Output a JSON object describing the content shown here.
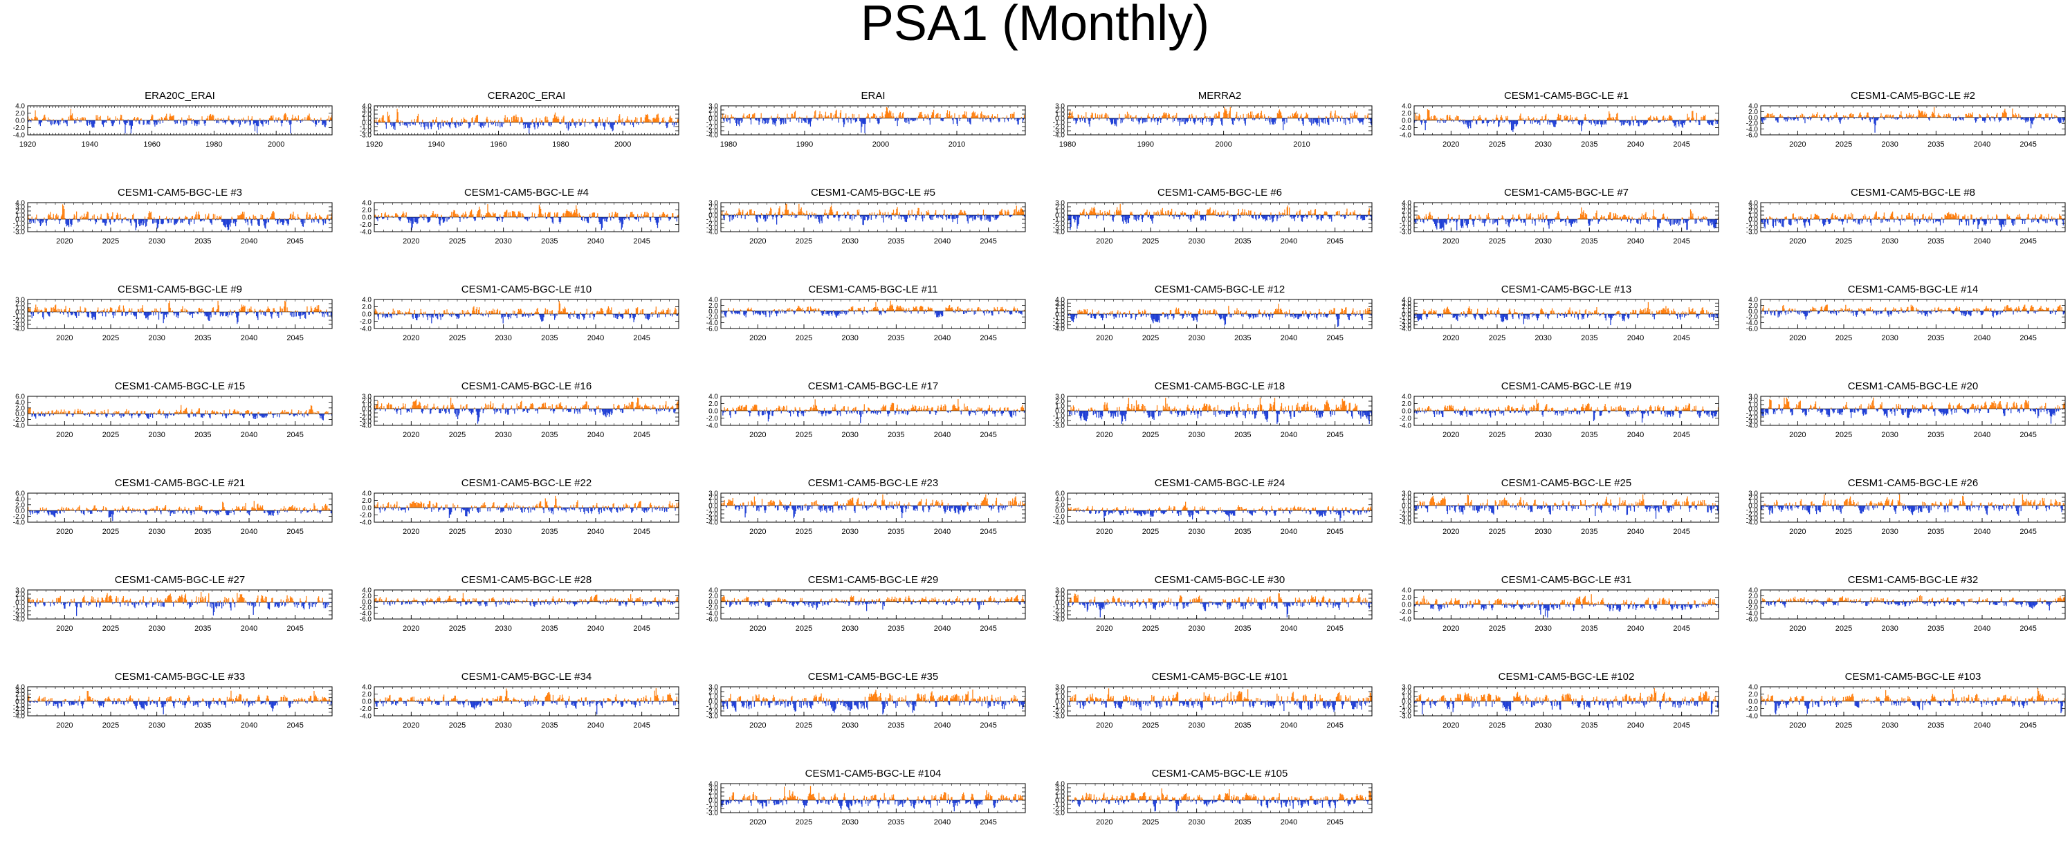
{
  "figure": {
    "title": "PSA1 (Monthly)",
    "colors": {
      "positive": "#ff7f0e",
      "negative": "#1f3fd6",
      "frame": "#000000"
    }
  },
  "chart_data": [
    {
      "type": "bar",
      "title": "ERA20C_ERAI",
      "xlim": [
        1920,
        2018
      ],
      "xticks": [
        "1920",
        "1940",
        "1960",
        "1980",
        "2000"
      ],
      "yticks": [
        "4.0",
        "2.0",
        "0.0",
        "-2.0",
        "-4.0"
      ],
      "ylim": [
        -4,
        4
      ],
      "seed": 11
    },
    {
      "type": "bar",
      "title": "CERA20C_ERAI",
      "xlim": [
        1920,
        2018
      ],
      "xticks": [
        "1920",
        "1940",
        "1960",
        "1980",
        "2000"
      ],
      "yticks": [
        "4.0",
        "3.0",
        "2.0",
        "1.0",
        "0.0",
        "-1.0",
        "-2.0",
        "-3.0"
      ],
      "ylim": [
        -3,
        4
      ],
      "seed": 12
    },
    {
      "type": "bar",
      "title": "ERAI",
      "xlim": [
        1979,
        2019
      ],
      "xticks": [
        "1980",
        "1990",
        "2000",
        "2010"
      ],
      "yticks": [
        "3.0",
        "2.0",
        "1.0",
        "0.0",
        "-1.0",
        "-2.0",
        "-3.0",
        "-4.0"
      ],
      "ylim": [
        -4,
        3
      ],
      "seed": 13
    },
    {
      "type": "bar",
      "title": "MERRA2",
      "xlim": [
        1980,
        2019
      ],
      "xticks": [
        "1980",
        "1990",
        "2000",
        "2010"
      ],
      "yticks": [
        "3.0",
        "2.0",
        "1.0",
        "0.0",
        "-1.0",
        "-2.0",
        "-3.0",
        "-4.0"
      ],
      "ylim": [
        -4,
        3
      ],
      "seed": 14
    },
    {
      "type": "bar",
      "title": "CESM1-CAM5-BGC-LE #1",
      "xlim": [
        2016,
        2049
      ],
      "xticks": [
        "2020",
        "2025",
        "2030",
        "2035",
        "2040",
        "2045"
      ],
      "yticks": [
        "4.0",
        "2.0",
        "0.0",
        "-2.0",
        "-4.0"
      ],
      "ylim": [
        -4,
        4
      ],
      "seed": 15
    },
    {
      "type": "bar",
      "title": "CESM1-CAM5-BGC-LE #2",
      "xlim": [
        2016,
        2049
      ],
      "xticks": [
        "2020",
        "2025",
        "2030",
        "2035",
        "2040",
        "2045"
      ],
      "yticks": [
        "4.0",
        "2.0",
        "0.0",
        "-2.0",
        "-4.0",
        "-6.0"
      ],
      "ylim": [
        -6,
        4
      ],
      "seed": 16
    },
    {
      "type": "bar",
      "title": "CESM1-CAM5-BGC-LE #3",
      "xlim": [
        2016,
        2049
      ],
      "xticks": [
        "2020",
        "2025",
        "2030",
        "2035",
        "2040",
        "2045"
      ],
      "yticks": [
        "4.0",
        "3.0",
        "2.0",
        "1.0",
        "0.0",
        "-1.0",
        "-2.0",
        "-3.0"
      ],
      "ylim": [
        -3,
        4
      ],
      "seed": 17
    },
    {
      "type": "bar",
      "title": "CESM1-CAM5-BGC-LE #4",
      "xlim": [
        2016,
        2049
      ],
      "xticks": [
        "2020",
        "2025",
        "2030",
        "2035",
        "2040",
        "2045"
      ],
      "yticks": [
        "4.0",
        "2.0",
        "0.0",
        "-2.0",
        "-4.0"
      ],
      "ylim": [
        -4,
        4
      ],
      "seed": 18
    },
    {
      "type": "bar",
      "title": "CESM1-CAM5-BGC-LE #5",
      "xlim": [
        2016,
        2049
      ],
      "xticks": [
        "2020",
        "2025",
        "2030",
        "2035",
        "2040",
        "2045"
      ],
      "yticks": [
        "3.0",
        "2.0",
        "1.0",
        "0.0",
        "-1.0",
        "-2.0",
        "-3.0",
        "-4.0"
      ],
      "ylim": [
        -4,
        3
      ],
      "seed": 19
    },
    {
      "type": "bar",
      "title": "CESM1-CAM5-BGC-LE #6",
      "xlim": [
        2016,
        2049
      ],
      "xticks": [
        "2020",
        "2025",
        "2030",
        "2035",
        "2040",
        "2045"
      ],
      "yticks": [
        "3.0",
        "2.0",
        "1.0",
        "0.0",
        "-1.0",
        "-2.0",
        "-3.0",
        "-4.0"
      ],
      "ylim": [
        -4,
        3
      ],
      "seed": 20
    },
    {
      "type": "bar",
      "title": "CESM1-CAM5-BGC-LE #7",
      "xlim": [
        2016,
        2049
      ],
      "xticks": [
        "2020",
        "2025",
        "2030",
        "2035",
        "2040",
        "2045"
      ],
      "yticks": [
        "4.0",
        "3.0",
        "2.0",
        "1.0",
        "0.0",
        "-1.0",
        "-2.0",
        "-3.0"
      ],
      "ylim": [
        -3,
        4
      ],
      "seed": 21
    },
    {
      "type": "bar",
      "title": "CESM1-CAM5-BGC-LE #8",
      "xlim": [
        2016,
        2049
      ],
      "xticks": [
        "2020",
        "2025",
        "2030",
        "2035",
        "2040",
        "2045"
      ],
      "yticks": [
        "4.0",
        "3.0",
        "2.0",
        "1.0",
        "0.0",
        "-1.0",
        "-2.0",
        "-3.0"
      ],
      "ylim": [
        -3,
        4
      ],
      "seed": 22
    },
    {
      "type": "bar",
      "title": "CESM1-CAM5-BGC-LE #9",
      "xlim": [
        2016,
        2049
      ],
      "xticks": [
        "2020",
        "2025",
        "2030",
        "2035",
        "2040",
        "2045"
      ],
      "yticks": [
        "3.0",
        "2.0",
        "1.0",
        "0.0",
        "-1.0",
        "-2.0",
        "-3.0",
        "-4.0"
      ],
      "ylim": [
        -4,
        3
      ],
      "seed": 23
    },
    {
      "type": "bar",
      "title": "CESM1-CAM5-BGC-LE #10",
      "xlim": [
        2016,
        2049
      ],
      "xticks": [
        "2020",
        "2025",
        "2030",
        "2035",
        "2040",
        "2045"
      ],
      "yticks": [
        "4.0",
        "2.0",
        "0.0",
        "-2.0",
        "-4.0"
      ],
      "ylim": [
        -4,
        4
      ],
      "seed": 24
    },
    {
      "type": "bar",
      "title": "CESM1-CAM5-BGC-LE #11",
      "xlim": [
        2016,
        2049
      ],
      "xticks": [
        "2020",
        "2025",
        "2030",
        "2035",
        "2040",
        "2045"
      ],
      "yticks": [
        "4.0",
        "2.0",
        "0.0",
        "-2.0",
        "-4.0",
        "-6.0"
      ],
      "ylim": [
        -6,
        4
      ],
      "seed": 25
    },
    {
      "type": "bar",
      "title": "CESM1-CAM5-BGC-LE #12",
      "xlim": [
        2016,
        2049
      ],
      "xticks": [
        "2020",
        "2025",
        "2030",
        "2035",
        "2040",
        "2045"
      ],
      "yticks": [
        "4.0",
        "3.0",
        "2.0",
        "1.0",
        "0.0",
        "-1.0",
        "-2.0",
        "-3.0",
        "-4.0"
      ],
      "ylim": [
        -4,
        4
      ],
      "seed": 26
    },
    {
      "type": "bar",
      "title": "CESM1-CAM5-BGC-LE #13",
      "xlim": [
        2016,
        2049
      ],
      "xticks": [
        "2020",
        "2025",
        "2030",
        "2035",
        "2040",
        "2045"
      ],
      "yticks": [
        "4.0",
        "3.0",
        "2.0",
        "1.0",
        "0.0",
        "-1.0",
        "-2.0",
        "-3.0",
        "-4.0"
      ],
      "ylim": [
        -4,
        4
      ],
      "seed": 27
    },
    {
      "type": "bar",
      "title": "CESM1-CAM5-BGC-LE #14",
      "xlim": [
        2016,
        2049
      ],
      "xticks": [
        "2020",
        "2025",
        "2030",
        "2035",
        "2040",
        "2045"
      ],
      "yticks": [
        "4.0",
        "2.0",
        "0.0",
        "-2.0",
        "-4.0",
        "-6.0"
      ],
      "ylim": [
        -6,
        4
      ],
      "seed": 28
    },
    {
      "type": "bar",
      "title": "CESM1-CAM5-BGC-LE #15",
      "xlim": [
        2016,
        2049
      ],
      "xticks": [
        "2020",
        "2025",
        "2030",
        "2035",
        "2040",
        "2045"
      ],
      "yticks": [
        "6.0",
        "4.0",
        "2.0",
        "0.0",
        "-2.0",
        "-4.0"
      ],
      "ylim": [
        -4,
        6
      ],
      "seed": 29
    },
    {
      "type": "bar",
      "title": "CESM1-CAM5-BGC-LE #16",
      "xlim": [
        2016,
        2049
      ],
      "xticks": [
        "2020",
        "2025",
        "2030",
        "2035",
        "2040",
        "2045"
      ],
      "yticks": [
        "3.0",
        "2.0",
        "1.0",
        "0.0",
        "-1.0",
        "-2.0",
        "-3.0",
        "-4.0"
      ],
      "ylim": [
        -4,
        3
      ],
      "seed": 30
    },
    {
      "type": "bar",
      "title": "CESM1-CAM5-BGC-LE #17",
      "xlim": [
        2016,
        2049
      ],
      "xticks": [
        "2020",
        "2025",
        "2030",
        "2035",
        "2040",
        "2045"
      ],
      "yticks": [
        "4.0",
        "2.0",
        "0.0",
        "-2.0",
        "-4.0"
      ],
      "ylim": [
        -4,
        4
      ],
      "seed": 31
    },
    {
      "type": "bar",
      "title": "CESM1-CAM5-BGC-LE #18",
      "xlim": [
        2016,
        2049
      ],
      "xticks": [
        "2020",
        "2025",
        "2030",
        "2035",
        "2040",
        "2045"
      ],
      "yticks": [
        "3.0",
        "2.0",
        "1.0",
        "0.0",
        "-1.0",
        "-2.0",
        "-3.0"
      ],
      "ylim": [
        -3,
        3
      ],
      "seed": 32
    },
    {
      "type": "bar",
      "title": "CESM1-CAM5-BGC-LE #19",
      "xlim": [
        2016,
        2049
      ],
      "xticks": [
        "2020",
        "2025",
        "2030",
        "2035",
        "2040",
        "2045"
      ],
      "yticks": [
        "4.0",
        "2.0",
        "0.0",
        "-2.0",
        "-4.0"
      ],
      "ylim": [
        -4,
        4
      ],
      "seed": 33
    },
    {
      "type": "bar",
      "title": "CESM1-CAM5-BGC-LE #20",
      "xlim": [
        2016,
        2049
      ],
      "xticks": [
        "2020",
        "2025",
        "2030",
        "2035",
        "2040",
        "2045"
      ],
      "yticks": [
        "3.0",
        "2.0",
        "1.0",
        "0.0",
        "-1.0",
        "-2.0",
        "-3.0",
        "-4.0"
      ],
      "ylim": [
        -4,
        3
      ],
      "seed": 34
    },
    {
      "type": "bar",
      "title": "CESM1-CAM5-BGC-LE #21",
      "xlim": [
        2016,
        2049
      ],
      "xticks": [
        "2020",
        "2025",
        "2030",
        "2035",
        "2040",
        "2045"
      ],
      "yticks": [
        "6.0",
        "4.0",
        "2.0",
        "0.0",
        "-2.0",
        "-4.0"
      ],
      "ylim": [
        -4,
        6
      ],
      "seed": 35
    },
    {
      "type": "bar",
      "title": "CESM1-CAM5-BGC-LE #22",
      "xlim": [
        2016,
        2049
      ],
      "xticks": [
        "2020",
        "2025",
        "2030",
        "2035",
        "2040",
        "2045"
      ],
      "yticks": [
        "4.0",
        "2.0",
        "0.0",
        "-2.0",
        "-4.0"
      ],
      "ylim": [
        -4,
        4
      ],
      "seed": 36
    },
    {
      "type": "bar",
      "title": "CESM1-CAM5-BGC-LE #23",
      "xlim": [
        2016,
        2049
      ],
      "xticks": [
        "2020",
        "2025",
        "2030",
        "2035",
        "2040",
        "2045"
      ],
      "yticks": [
        "3.0",
        "2.0",
        "1.0",
        "0.0",
        "-1.0",
        "-2.0",
        "-3.0",
        "-4.0"
      ],
      "ylim": [
        -4,
        3
      ],
      "seed": 37
    },
    {
      "type": "bar",
      "title": "CESM1-CAM5-BGC-LE #24",
      "xlim": [
        2016,
        2049
      ],
      "xticks": [
        "2020",
        "2025",
        "2030",
        "2035",
        "2040",
        "2045"
      ],
      "yticks": [
        "6.0",
        "4.0",
        "2.0",
        "0.0",
        "-2.0",
        "-4.0"
      ],
      "ylim": [
        -4,
        6
      ],
      "seed": 38
    },
    {
      "type": "bar",
      "title": "CESM1-CAM5-BGC-LE #25",
      "xlim": [
        2016,
        2049
      ],
      "xticks": [
        "2020",
        "2025",
        "2030",
        "2035",
        "2040",
        "2045"
      ],
      "yticks": [
        "3.0",
        "2.0",
        "1.0",
        "0.0",
        "-1.0",
        "-2.0",
        "-3.0",
        "-4.0"
      ],
      "ylim": [
        -4,
        3
      ],
      "seed": 39
    },
    {
      "type": "bar",
      "title": "CESM1-CAM5-BGC-LE #26",
      "xlim": [
        2016,
        2049
      ],
      "xticks": [
        "2020",
        "2025",
        "2030",
        "2035",
        "2040",
        "2045"
      ],
      "yticks": [
        "3.0",
        "2.0",
        "1.0",
        "0.0",
        "-1.0",
        "-2.0",
        "-3.0",
        "-4.0"
      ],
      "ylim": [
        -4,
        3
      ],
      "seed": 40
    },
    {
      "type": "bar",
      "title": "CESM1-CAM5-BGC-LE #27",
      "xlim": [
        2016,
        2049
      ],
      "xticks": [
        "2020",
        "2025",
        "2030",
        "2035",
        "2040",
        "2045"
      ],
      "yticks": [
        "3.0",
        "2.0",
        "1.0",
        "0.0",
        "-1.0",
        "-2.0",
        "-3.0",
        "-4.0"
      ],
      "ylim": [
        -4,
        3
      ],
      "seed": 41
    },
    {
      "type": "bar",
      "title": "CESM1-CAM5-BGC-LE #28",
      "xlim": [
        2016,
        2049
      ],
      "xticks": [
        "2020",
        "2025",
        "2030",
        "2035",
        "2040",
        "2045"
      ],
      "yticks": [
        "4.0",
        "2.0",
        "0.0",
        "-2.0",
        "-4.0",
        "-6.0"
      ],
      "ylim": [
        -6,
        4
      ],
      "seed": 42
    },
    {
      "type": "bar",
      "title": "CESM1-CAM5-BGC-LE #29",
      "xlim": [
        2016,
        2049
      ],
      "xticks": [
        "2020",
        "2025",
        "2030",
        "2035",
        "2040",
        "2045"
      ],
      "yticks": [
        "4.0",
        "2.0",
        "0.0",
        "-2.0",
        "-4.0",
        "-6.0"
      ],
      "ylim": [
        -6,
        4
      ],
      "seed": 43
    },
    {
      "type": "bar",
      "title": "CESM1-CAM5-BGC-LE #30",
      "xlim": [
        2016,
        2049
      ],
      "xticks": [
        "2020",
        "2025",
        "2030",
        "2035",
        "2040",
        "2045"
      ],
      "yticks": [
        "3.0",
        "2.0",
        "1.0",
        "0.0",
        "-1.0",
        "-2.0",
        "-3.0",
        "-4.0"
      ],
      "ylim": [
        -4,
        3
      ],
      "seed": 44
    },
    {
      "type": "bar",
      "title": "CESM1-CAM5-BGC-LE #31",
      "xlim": [
        2016,
        2049
      ],
      "xticks": [
        "2020",
        "2025",
        "2030",
        "2035",
        "2040",
        "2045"
      ],
      "yticks": [
        "4.0",
        "2.0",
        "0.0",
        "-2.0",
        "-4.0"
      ],
      "ylim": [
        -4,
        4
      ],
      "seed": 45
    },
    {
      "type": "bar",
      "title": "CESM1-CAM5-BGC-LE #32",
      "xlim": [
        2016,
        2049
      ],
      "xticks": [
        "2020",
        "2025",
        "2030",
        "2035",
        "2040",
        "2045"
      ],
      "yticks": [
        "4.0",
        "2.0",
        "0.0",
        "-2.0",
        "-4.0",
        "-6.0"
      ],
      "ylim": [
        -6,
        4
      ],
      "seed": 46
    },
    {
      "type": "bar",
      "title": "CESM1-CAM5-BGC-LE #33",
      "xlim": [
        2016,
        2049
      ],
      "xticks": [
        "2020",
        "2025",
        "2030",
        "2035",
        "2040",
        "2045"
      ],
      "yticks": [
        "4.0",
        "3.0",
        "2.0",
        "1.0",
        "0.0",
        "-1.0",
        "-2.0",
        "-3.0",
        "-4.0"
      ],
      "ylim": [
        -4,
        4
      ],
      "seed": 47
    },
    {
      "type": "bar",
      "title": "CESM1-CAM5-BGC-LE #34",
      "xlim": [
        2016,
        2049
      ],
      "xticks": [
        "2020",
        "2025",
        "2030",
        "2035",
        "2040",
        "2045"
      ],
      "yticks": [
        "4.0",
        "2.0",
        "0.0",
        "-2.0",
        "-4.0"
      ],
      "ylim": [
        -4,
        4
      ],
      "seed": 48
    },
    {
      "type": "bar",
      "title": "CESM1-CAM5-BGC-LE #35",
      "xlim": [
        2016,
        2049
      ],
      "xticks": [
        "2020",
        "2025",
        "2030",
        "2035",
        "2040",
        "2045"
      ],
      "yticks": [
        "3.0",
        "2.0",
        "1.0",
        "0.0",
        "-1.0",
        "-2.0",
        "-3.0"
      ],
      "ylim": [
        -3,
        3
      ],
      "seed": 49
    },
    {
      "type": "bar",
      "title": "CESM1-CAM5-BGC-LE #101",
      "xlim": [
        2016,
        2049
      ],
      "xticks": [
        "2020",
        "2025",
        "2030",
        "2035",
        "2040",
        "2045"
      ],
      "yticks": [
        "3.0",
        "2.0",
        "1.0",
        "0.0",
        "-1.0",
        "-2.0",
        "-3.0"
      ],
      "ylim": [
        -3,
        3
      ],
      "seed": 50
    },
    {
      "type": "bar",
      "title": "CESM1-CAM5-BGC-LE #102",
      "xlim": [
        2016,
        2049
      ],
      "xticks": [
        "2020",
        "2025",
        "2030",
        "2035",
        "2040",
        "2045"
      ],
      "yticks": [
        "3.0",
        "2.0",
        "1.0",
        "0.0",
        "-1.0",
        "-2.0",
        "-3.0"
      ],
      "ylim": [
        -3,
        3
      ],
      "seed": 51
    },
    {
      "type": "bar",
      "title": "CESM1-CAM5-BGC-LE #103",
      "xlim": [
        2016,
        2049
      ],
      "xticks": [
        "2020",
        "2025",
        "2030",
        "2035",
        "2040",
        "2045"
      ],
      "yticks": [
        "4.0",
        "2.0",
        "0.0",
        "-2.0",
        "-4.0"
      ],
      "ylim": [
        -4,
        4
      ],
      "seed": 52
    },
    {
      "type": "bar",
      "title": "CESM1-CAM5-BGC-LE #104",
      "xlim": [
        2016,
        2049
      ],
      "xticks": [
        "2020",
        "2025",
        "2030",
        "2035",
        "2040",
        "2045"
      ],
      "yticks": [
        "4.0",
        "3.0",
        "2.0",
        "1.0",
        "0.0",
        "-1.0",
        "-2.0",
        "-3.0"
      ],
      "ylim": [
        -3,
        4
      ],
      "seed": 53
    },
    {
      "type": "bar",
      "title": "CESM1-CAM5-BGC-LE #105",
      "xlim": [
        2016,
        2049
      ],
      "xticks": [
        "2020",
        "2025",
        "2030",
        "2035",
        "2040",
        "2045"
      ],
      "yticks": [
        "4.0",
        "3.0",
        "2.0",
        "1.0",
        "0.0",
        "-1.0",
        "-2.0",
        "-3.0"
      ],
      "ylim": [
        -3,
        4
      ],
      "seed": 54
    }
  ]
}
